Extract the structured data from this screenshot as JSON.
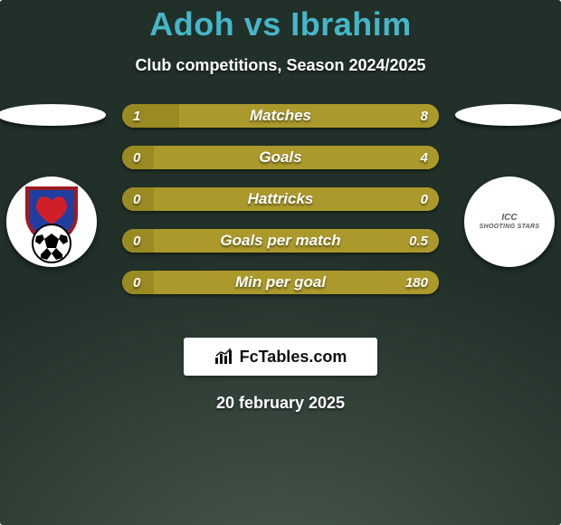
{
  "colors": {
    "bg_top": "#213028",
    "bg_bottom": "#46574b",
    "title": "#46b6c9",
    "text": "#ffffff",
    "bar_left": "#9a8a22",
    "bar_right": "#ab992b",
    "bar_track": "#c8bb60",
    "watermark_bg": "#ffffff",
    "watermark_text": "#111111"
  },
  "title": "Adoh vs Ibrahim",
  "subtitle": "Club competitions, Season 2024/2025",
  "date": "20 february 2025",
  "watermark": "FcTables.com",
  "badges": {
    "left": {
      "shield_fill": "#1f3ea0",
      "shield_stroke": "#9d1c23",
      "heart_fill": "#d11f2a"
    },
    "right": {
      "line1": "ICC",
      "line2": "SHOOTING STARS"
    }
  },
  "rows": [
    {
      "label": "Matches",
      "left": "1",
      "right": "8",
      "left_ratio": 0.18,
      "right_ratio": 0.82
    },
    {
      "label": "Goals",
      "left": "0",
      "right": "4",
      "left_ratio": 0.1,
      "right_ratio": 0.9
    },
    {
      "label": "Hattricks",
      "left": "0",
      "right": "0",
      "left_ratio": 0.1,
      "right_ratio": 0.9
    },
    {
      "label": "Goals per match",
      "left": "0",
      "right": "0.5",
      "left_ratio": 0.1,
      "right_ratio": 0.9
    },
    {
      "label": "Min per goal",
      "left": "0",
      "right": "180",
      "left_ratio": 0.1,
      "right_ratio": 0.9
    }
  ]
}
